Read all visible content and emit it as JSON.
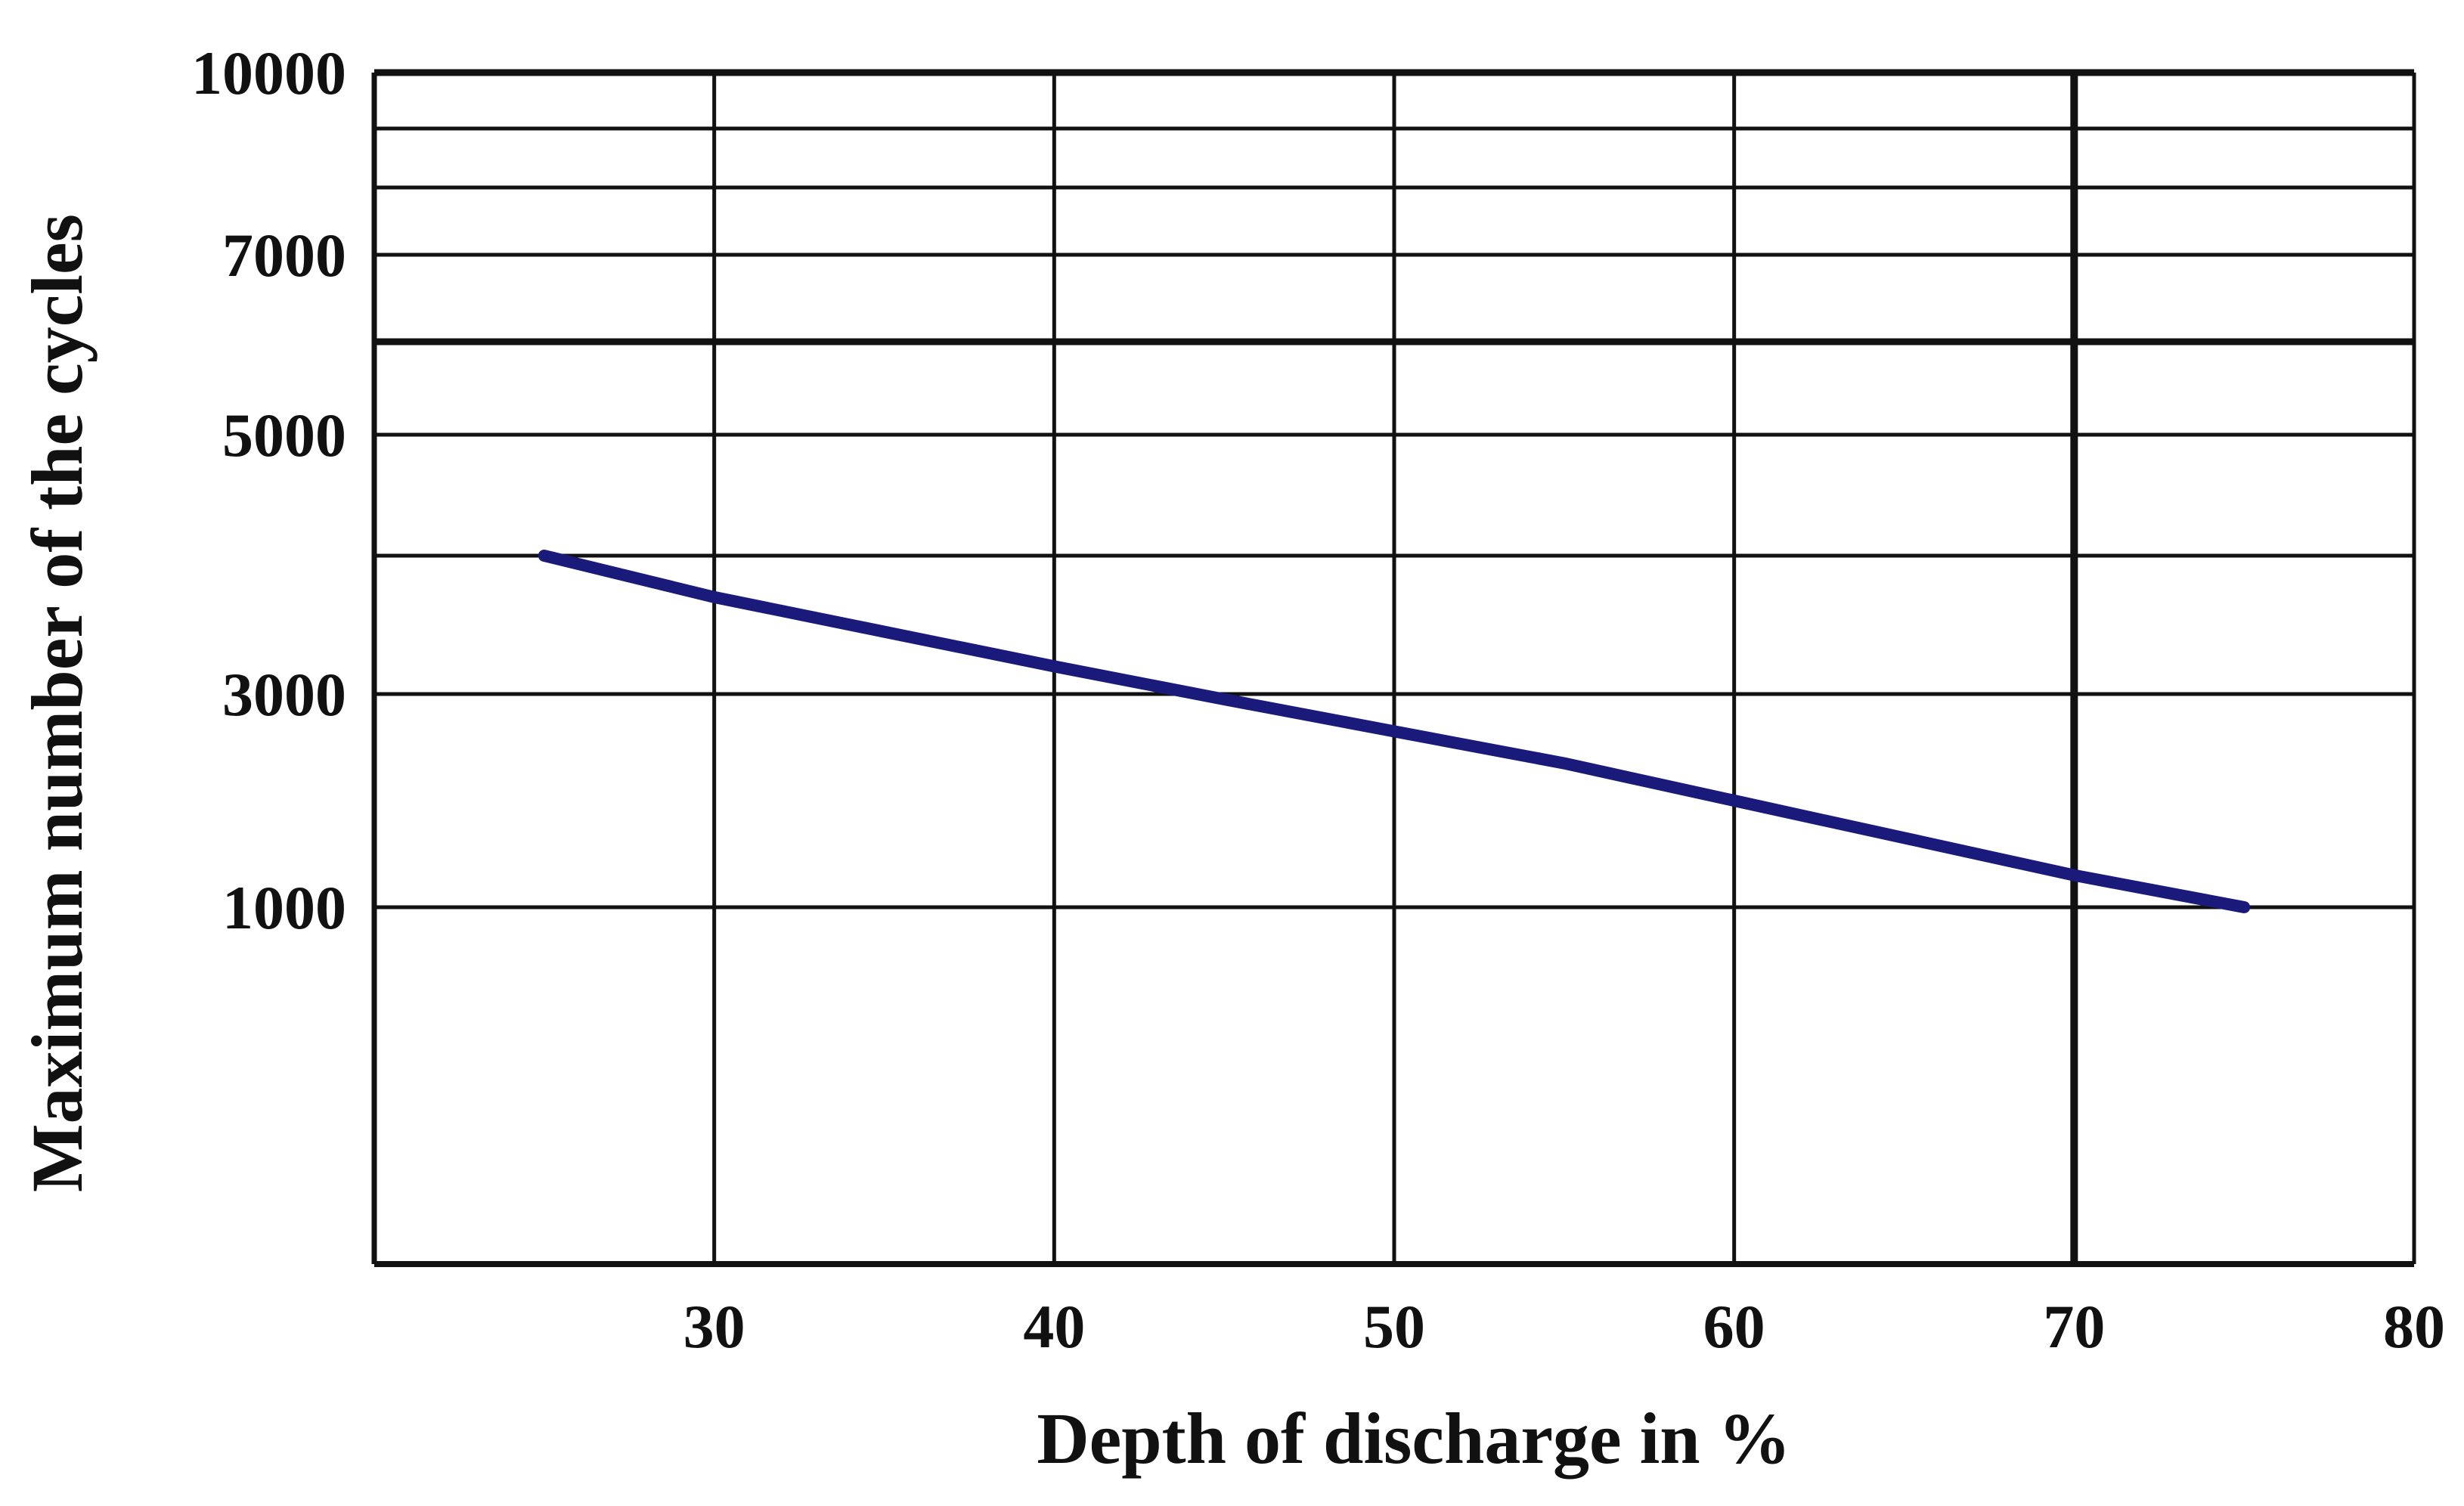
{
  "chart_data": {
    "type": "line",
    "title": "",
    "xlabel": "Depth of discharge in %",
    "ylabel": "Maximum number of the cycles",
    "xlim": [
      20,
      80
    ],
    "x_ticks": [
      30,
      40,
      50,
      60,
      70,
      80
    ],
    "x_tick_labels": [
      "30",
      "40",
      "50",
      "60",
      "70",
      "80"
    ],
    "y_tick_labels": [
      "10000",
      "7000",
      "5000",
      "3000",
      "1000"
    ],
    "y_gridlines": [
      10000,
      9000,
      8000,
      7000,
      6000,
      5000,
      4000,
      3000,
      1000,
      0
    ],
    "grid": true,
    "legend": "none",
    "line_color": "#1a1a7a",
    "grid_color": "#111111",
    "series": [
      {
        "x": [
          25,
          30,
          35,
          40,
          45,
          50,
          55,
          60,
          65,
          70,
          75
        ],
        "y": [
          4000,
          3700,
          3450,
          3200,
          2950,
          2650,
          2350,
          2000,
          1650,
          1300,
          1000
        ]
      }
    ]
  }
}
